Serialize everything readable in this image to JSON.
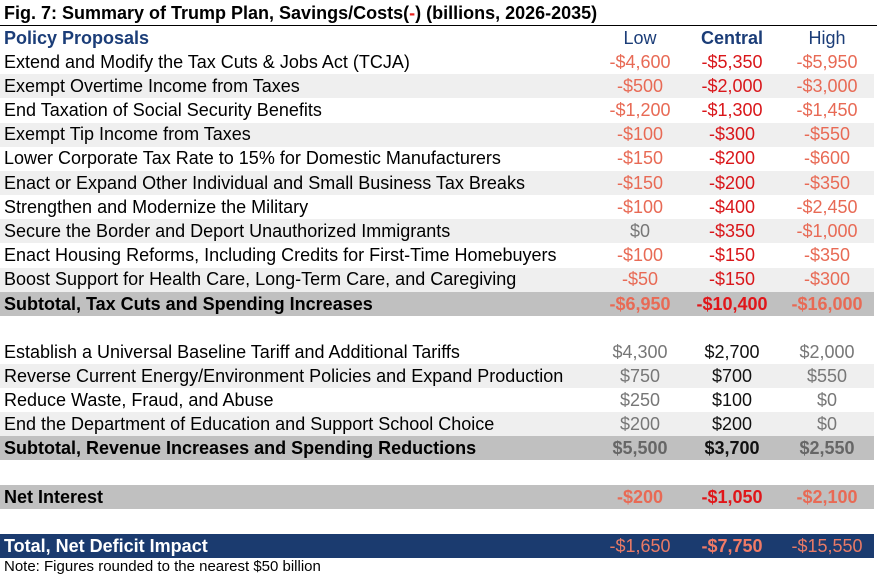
{
  "title": {
    "prefix": "Fig. 7: Summary of Trump Plan, Savings/Costs(",
    "neg_sign": "-",
    "suffix": ") (billions, 2026-2035)"
  },
  "header": {
    "label": "Policy Proposals",
    "low": "Low",
    "central": "Central",
    "high": "High"
  },
  "spending_rows": [
    {
      "label": "Extend and Modify the Tax Cuts & Jobs Act (TCJA)",
      "low": "-$4,600",
      "central": "-$5,350",
      "high": "-$5,950"
    },
    {
      "label": "Exempt Overtime Income from Taxes",
      "low": "-$500",
      "central": "-$2,000",
      "high": "-$3,000"
    },
    {
      "label": "End Taxation of Social Security Benefits",
      "low": "-$1,200",
      "central": "-$1,300",
      "high": "-$1,450"
    },
    {
      "label": "Exempt Tip Income from Taxes",
      "low": "-$100",
      "central": "-$300",
      "high": "-$550"
    },
    {
      "label": "Lower Corporate Tax Rate to 15% for Domestic Manufacturers",
      "low": "-$150",
      "central": "-$200",
      "high": "-$600"
    },
    {
      "label": "Enact or Expand Other Individual and Small Business Tax Breaks",
      "low": "-$150",
      "central": "-$200",
      "high": "-$350"
    },
    {
      "label": "Strengthen and Modernize the Military",
      "low": "-$100",
      "central": "-$400",
      "high": "-$2,450"
    },
    {
      "label": "Secure the Border and Deport Unauthorized Immigrants",
      "low": "$0",
      "central": "-$350",
      "high": "-$1,000"
    },
    {
      "label": "Enact Housing Reforms, Including Credits for First-Time Homebuyers",
      "low": "-$100",
      "central": "-$150",
      "high": "-$350"
    },
    {
      "label": "Boost Support for Health Care, Long-Term Care, and Caregiving",
      "low": "-$50",
      "central": "-$150",
      "high": "-$300"
    }
  ],
  "subtotal_spending": {
    "label": "Subtotal, Tax Cuts and Spending Increases",
    "low": "-$6,950",
    "central": "-$10,400",
    "high": "-$16,000"
  },
  "revenue_rows": [
    {
      "label": "Establish a Universal Baseline Tariff and Additional Tariffs",
      "low": "$4,300",
      "central": "$2,700",
      "high": "$2,000"
    },
    {
      "label": "Reverse Current Energy/Environment Policies and Expand Production",
      "low": "$750",
      "central": "$700",
      "high": "$550"
    },
    {
      "label": "Reduce Waste, Fraud, and Abuse",
      "low": "$250",
      "central": "$100",
      "high": "$0"
    },
    {
      "label": "End the Department of Education and Support School Choice",
      "low": "$200",
      "central": "$200",
      "high": "$0"
    }
  ],
  "subtotal_revenue": {
    "label": "Subtotal, Revenue Increases and Spending Reductions",
    "low": "$5,500",
    "central": "$3,700",
    "high": "$2,550"
  },
  "net_interest": {
    "label": "Net Interest",
    "low": "-$200",
    "central": "-$1,050",
    "high": "-$2,100"
  },
  "total": {
    "label": "Total, Net Deficit Impact",
    "low": "-$1,650",
    "central": "-$7,750",
    "high": "-$15,550"
  },
  "note": "Note: Figures rounded to the nearest $50 billion",
  "colors": {
    "navy": "#1b3b6f",
    "negative_red": "#d9161a",
    "negative_light": "#e86a55",
    "subtotal_gray": "#c0c0c0"
  }
}
